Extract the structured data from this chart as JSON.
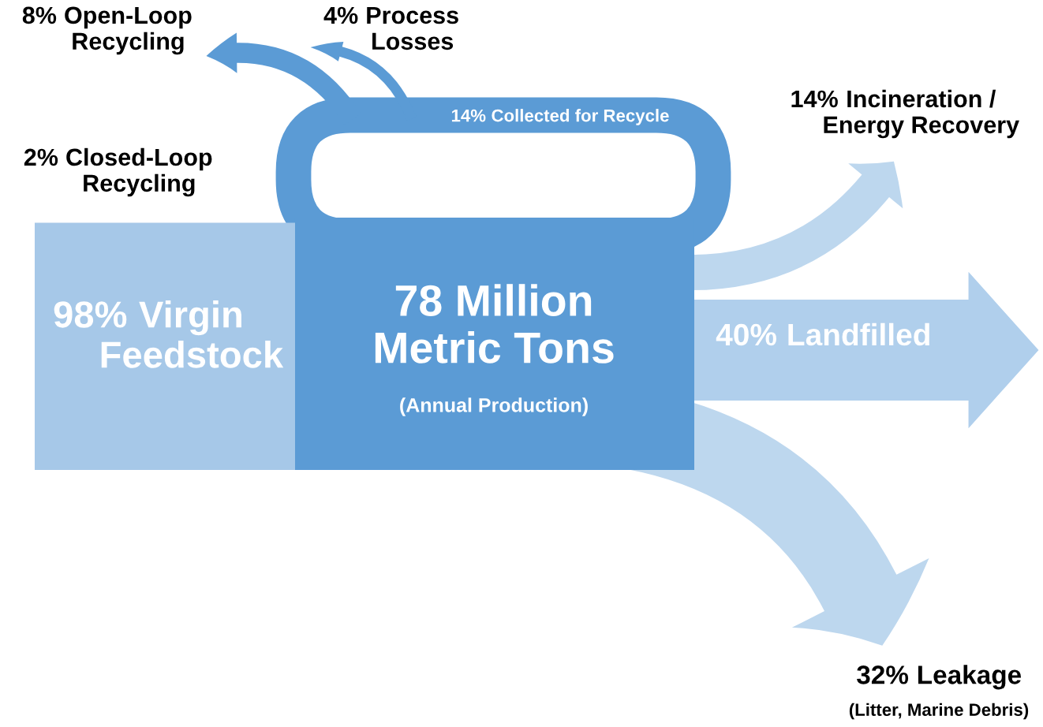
{
  "chart_data": {
    "type": "other",
    "title": "78 Million\nMetric Tons",
    "categories": [
      "Virgin\nFeedstock",
      "Closed-Loop\nRecycling",
      "Collected for Recycle",
      "Open-Loop\nRecycling",
      "Process\nLosses",
      "Incineration /\nEnergy Recovery",
      "Landfilled",
      "Leakage"
    ],
    "values": [
      98,
      2,
      14,
      8,
      4,
      14,
      40,
      32
    ],
    "value_labels": [
      "98%",
      "2%",
      "14%",
      "8%",
      "4%",
      "14%",
      "40%",
      "32%"
    ],
    "colors": [
      "#a6c8e8",
      "#5b9bd5",
      "#5b9bd5",
      "#5b9bd5",
      "#5b9bd5",
      "#bdd7ee",
      "#b0cfec",
      "#bdd7ee"
    ],
    "annotations": [
      "(Annual Production)",
      "(Litter, Marine Debris)"
    ]
  }
}
